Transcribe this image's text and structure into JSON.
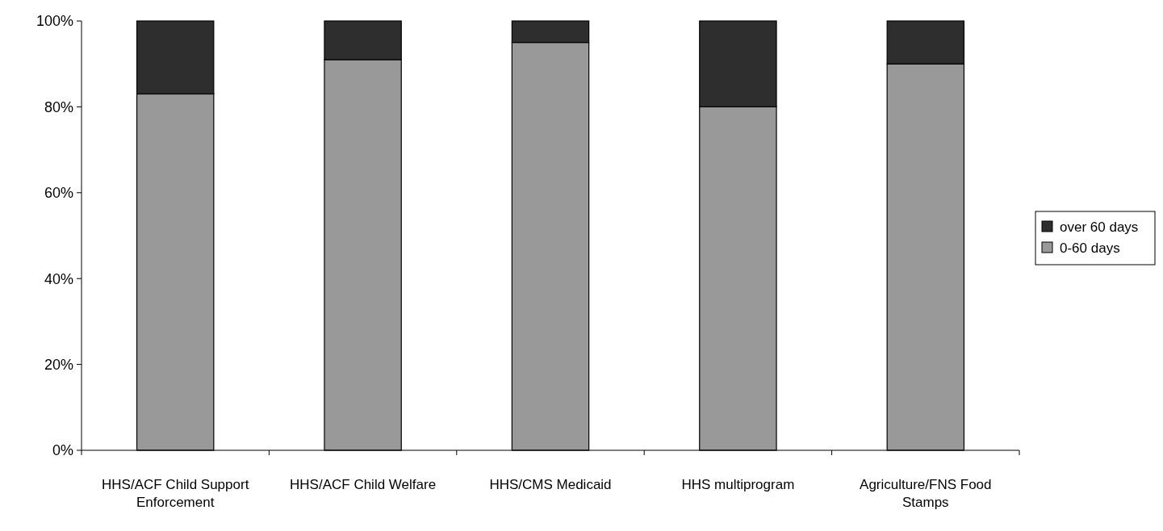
{
  "chart_data": {
    "type": "bar",
    "stacked": true,
    "categories": [
      "HHS/ACF Child Support Enforcement",
      "HHS/ACF Child Welfare",
      "HHS/CMS Medicaid",
      "HHS multiprogram",
      "Agriculture/FNS Food Stamps"
    ],
    "series": [
      {
        "name": "0-60 days",
        "color": "#999999",
        "values": [
          83,
          91,
          95,
          80,
          90
        ]
      },
      {
        "name": "over 60 days",
        "color": "#2e2e2e",
        "values": [
          17,
          9,
          5,
          20,
          10
        ]
      }
    ],
    "ylim": [
      0,
      100
    ],
    "yticks": [
      {
        "value": 0,
        "label": "0%"
      },
      {
        "value": 20,
        "label": "20%"
      },
      {
        "value": 40,
        "label": "40%"
      },
      {
        "value": 60,
        "label": "60%"
      },
      {
        "value": 80,
        "label": "80%"
      },
      {
        "value": 100,
        "label": "100%"
      }
    ],
    "grid": false,
    "legend": "right"
  }
}
